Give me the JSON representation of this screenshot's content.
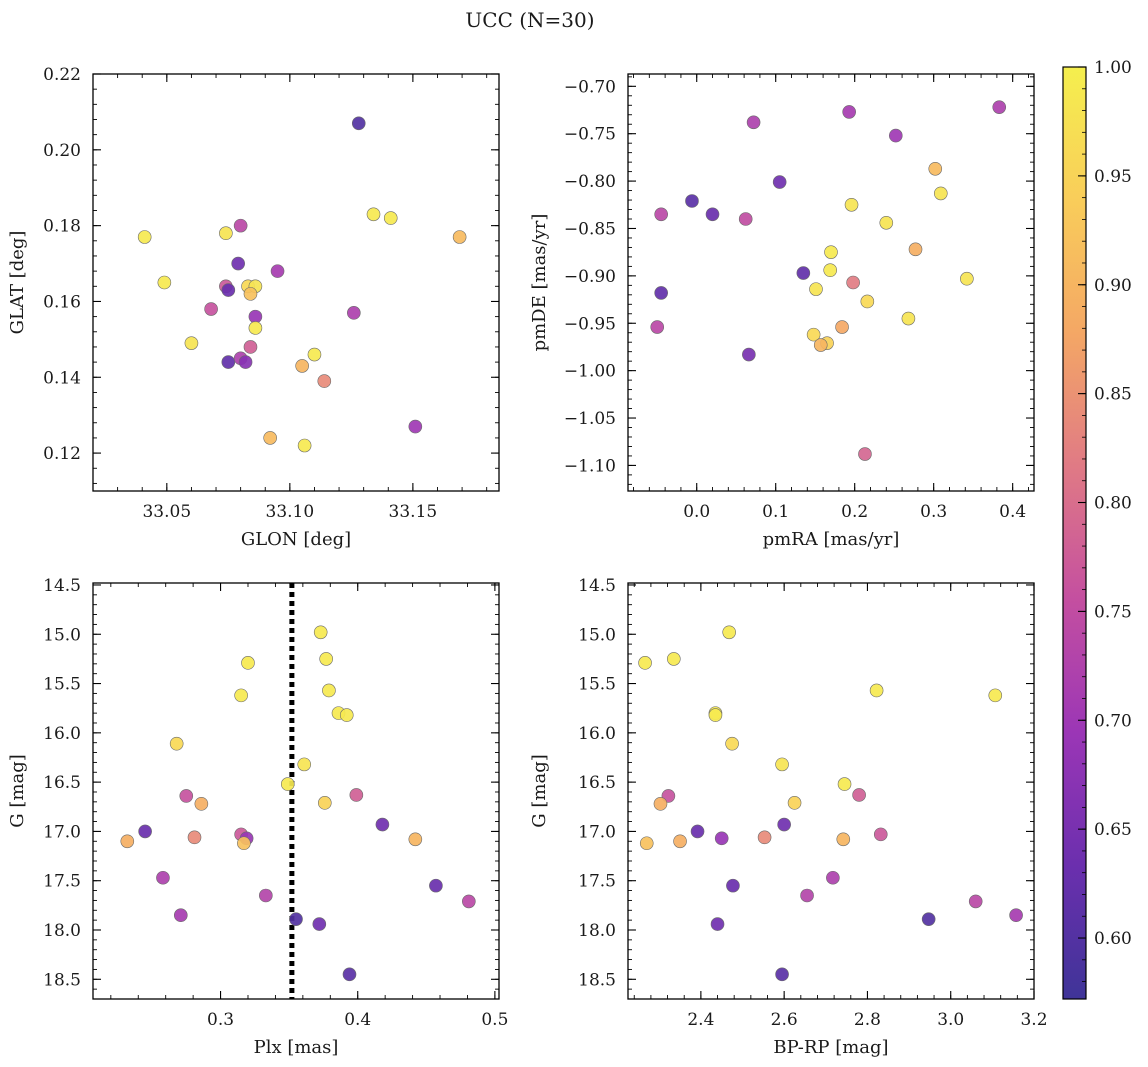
{
  "figure": {
    "suptitle": "UCC (N=30)"
  },
  "colorbar": {
    "ticks": [
      "0.60",
      "0.65",
      "0.70",
      "0.75",
      "0.80",
      "0.85",
      "0.90",
      "0.95",
      "1.00"
    ],
    "range": [
      0.572,
      1.0
    ],
    "colormap": "plasma-trimmed",
    "colors": [
      "#3f3498",
      "#6b2fae",
      "#9b36b6",
      "#c44fa0",
      "#e07a85",
      "#f4a765",
      "#f9cd5a",
      "#f5ef4e"
    ]
  },
  "chart_data": [
    {
      "id": "glon-glat",
      "type": "scatter",
      "xlabel": "GLON [deg]",
      "ylabel": "GLAT [deg]",
      "xlim": [
        33.02,
        33.185
      ],
      "ylim": [
        0.11,
        0.22
      ],
      "xticks": [
        "33.05",
        "33.10",
        "33.15"
      ],
      "yticks": [
        "0.12",
        "0.14",
        "0.16",
        "0.18",
        "0.20",
        "0.22"
      ],
      "points": [
        {
          "x": 33.128,
          "y": 0.207,
          "c": 0.6
        },
        {
          "x": 33.041,
          "y": 0.177,
          "c": 0.99
        },
        {
          "x": 33.049,
          "y": 0.165,
          "c": 0.99
        },
        {
          "x": 33.074,
          "y": 0.178,
          "c": 0.98
        },
        {
          "x": 33.08,
          "y": 0.18,
          "c": 0.74
        },
        {
          "x": 33.079,
          "y": 0.17,
          "c": 0.64
        },
        {
          "x": 33.095,
          "y": 0.168,
          "c": 0.71
        },
        {
          "x": 33.074,
          "y": 0.164,
          "c": 0.77
        },
        {
          "x": 33.075,
          "y": 0.163,
          "c": 0.63
        },
        {
          "x": 33.083,
          "y": 0.164,
          "c": 0.96
        },
        {
          "x": 33.086,
          "y": 0.164,
          "c": 0.98
        },
        {
          "x": 33.084,
          "y": 0.162,
          "c": 0.92
        },
        {
          "x": 33.068,
          "y": 0.158,
          "c": 0.76
        },
        {
          "x": 33.086,
          "y": 0.156,
          "c": 0.69
        },
        {
          "x": 33.086,
          "y": 0.153,
          "c": 0.99
        },
        {
          "x": 33.06,
          "y": 0.149,
          "c": 0.98
        },
        {
          "x": 33.084,
          "y": 0.148,
          "c": 0.78
        },
        {
          "x": 33.075,
          "y": 0.144,
          "c": 0.62
        },
        {
          "x": 33.08,
          "y": 0.145,
          "c": 0.72
        },
        {
          "x": 33.082,
          "y": 0.144,
          "c": 0.67
        },
        {
          "x": 33.134,
          "y": 0.183,
          "c": 0.99
        },
        {
          "x": 33.141,
          "y": 0.182,
          "c": 0.99
        },
        {
          "x": 33.169,
          "y": 0.177,
          "c": 0.91
        },
        {
          "x": 33.126,
          "y": 0.157,
          "c": 0.72
        },
        {
          "x": 33.11,
          "y": 0.146,
          "c": 0.99
        },
        {
          "x": 33.105,
          "y": 0.143,
          "c": 0.9
        },
        {
          "x": 33.114,
          "y": 0.139,
          "c": 0.84
        },
        {
          "x": 33.151,
          "y": 0.127,
          "c": 0.7
        },
        {
          "x": 33.092,
          "y": 0.124,
          "c": 0.91
        },
        {
          "x": 33.106,
          "y": 0.122,
          "c": 0.99
        }
      ]
    },
    {
      "id": "pmra-pmde",
      "type": "scatter",
      "xlabel": "pmRA [mas/yr]",
      "ylabel": "pmDE [mas/yr]",
      "xlim": [
        -0.087,
        0.427
      ],
      "ylim": [
        -1.127,
        -0.687
      ],
      "xticks": [
        "0.0",
        "0.1",
        "0.2",
        "0.3",
        "0.4"
      ],
      "yticks": [
        "−0.70",
        "−0.75",
        "−0.80",
        "−0.85",
        "−0.90",
        "−0.95",
        "−1.00",
        "−1.05",
        "−1.10"
      ],
      "points": [
        {
          "x": 0.383,
          "y": -0.722,
          "c": 0.72
        },
        {
          "x": 0.193,
          "y": -0.727,
          "c": 0.71
        },
        {
          "x": 0.072,
          "y": -0.738,
          "c": 0.72
        },
        {
          "x": 0.252,
          "y": -0.752,
          "c": 0.7
        },
        {
          "x": 0.302,
          "y": -0.787,
          "c": 0.91
        },
        {
          "x": 0.105,
          "y": -0.801,
          "c": 0.64
        },
        {
          "x": 0.309,
          "y": -0.813,
          "c": 0.98
        },
        {
          "x": -0.006,
          "y": -0.821,
          "c": 0.61
        },
        {
          "x": 0.196,
          "y": -0.825,
          "c": 0.98
        },
        {
          "x": 0.02,
          "y": -0.835,
          "c": 0.63
        },
        {
          "x": -0.045,
          "y": -0.835,
          "c": 0.74
        },
        {
          "x": 0.062,
          "y": -0.84,
          "c": 0.75
        },
        {
          "x": 0.24,
          "y": -0.844,
          "c": 0.98
        },
        {
          "x": 0.277,
          "y": -0.872,
          "c": 0.89
        },
        {
          "x": 0.17,
          "y": -0.875,
          "c": 0.99
        },
        {
          "x": 0.135,
          "y": -0.897,
          "c": 0.62
        },
        {
          "x": 0.169,
          "y": -0.894,
          "c": 0.99
        },
        {
          "x": 0.342,
          "y": -0.903,
          "c": 0.98
        },
        {
          "x": 0.198,
          "y": -0.907,
          "c": 0.82
        },
        {
          "x": 0.151,
          "y": -0.914,
          "c": 0.98
        },
        {
          "x": -0.045,
          "y": -0.918,
          "c": 0.62
        },
        {
          "x": 0.216,
          "y": -0.927,
          "c": 0.96
        },
        {
          "x": 0.268,
          "y": -0.945,
          "c": 0.98
        },
        {
          "x": -0.05,
          "y": -0.954,
          "c": 0.74
        },
        {
          "x": 0.184,
          "y": -0.954,
          "c": 0.88
        },
        {
          "x": 0.148,
          "y": -0.962,
          "c": 0.96
        },
        {
          "x": 0.165,
          "y": -0.971,
          "c": 0.95
        },
        {
          "x": 0.157,
          "y": -0.973,
          "c": 0.9
        },
        {
          "x": 0.066,
          "y": -0.983,
          "c": 0.65
        },
        {
          "x": 0.213,
          "y": -1.088,
          "c": 0.79
        }
      ]
    },
    {
      "id": "plx-g",
      "type": "scatter",
      "xlabel": "Plx [mas]",
      "ylabel": "G [mag]",
      "xlim": [
        0.207,
        0.503
      ],
      "ylim": [
        18.7,
        14.48
      ],
      "xticks": [
        "0.3",
        "0.4",
        "0.5"
      ],
      "yticks": [
        "14.5",
        "15.0",
        "15.5",
        "16.0",
        "16.5",
        "17.0",
        "17.5",
        "18.0",
        "18.5"
      ],
      "vline": 0.352,
      "points": [
        {
          "x": 0.373,
          "y": 14.98,
          "c": 0.99
        },
        {
          "x": 0.377,
          "y": 15.25,
          "c": 0.99
        },
        {
          "x": 0.32,
          "y": 15.29,
          "c": 0.99
        },
        {
          "x": 0.379,
          "y": 15.57,
          "c": 0.99
        },
        {
          "x": 0.315,
          "y": 15.62,
          "c": 0.99
        },
        {
          "x": 0.386,
          "y": 15.8,
          "c": 0.99
        },
        {
          "x": 0.392,
          "y": 15.82,
          "c": 0.99
        },
        {
          "x": 0.268,
          "y": 16.11,
          "c": 0.96
        },
        {
          "x": 0.361,
          "y": 16.32,
          "c": 0.98
        },
        {
          "x": 0.349,
          "y": 16.52,
          "c": 0.99
        },
        {
          "x": 0.275,
          "y": 16.64,
          "c": 0.76
        },
        {
          "x": 0.399,
          "y": 16.63,
          "c": 0.78
        },
        {
          "x": 0.376,
          "y": 16.71,
          "c": 0.95
        },
        {
          "x": 0.286,
          "y": 16.72,
          "c": 0.89
        },
        {
          "x": 0.418,
          "y": 16.93,
          "c": 0.64
        },
        {
          "x": 0.245,
          "y": 17.0,
          "c": 0.63
        },
        {
          "x": 0.315,
          "y": 17.03,
          "c": 0.77
        },
        {
          "x": 0.319,
          "y": 17.07,
          "c": 0.69
        },
        {
          "x": 0.281,
          "y": 17.06,
          "c": 0.84
        },
        {
          "x": 0.442,
          "y": 17.08,
          "c": 0.9
        },
        {
          "x": 0.232,
          "y": 17.1,
          "c": 0.89
        },
        {
          "x": 0.317,
          "y": 17.12,
          "c": 0.92
        },
        {
          "x": 0.258,
          "y": 17.47,
          "c": 0.72
        },
        {
          "x": 0.457,
          "y": 17.55,
          "c": 0.63
        },
        {
          "x": 0.333,
          "y": 17.65,
          "c": 0.73
        },
        {
          "x": 0.481,
          "y": 17.71,
          "c": 0.74
        },
        {
          "x": 0.271,
          "y": 17.85,
          "c": 0.71
        },
        {
          "x": 0.355,
          "y": 17.89,
          "c": 0.6
        },
        {
          "x": 0.372,
          "y": 17.94,
          "c": 0.64
        },
        {
          "x": 0.394,
          "y": 18.45,
          "c": 0.61
        }
      ]
    },
    {
      "id": "bprp-g",
      "type": "scatter",
      "xlabel": "BP-RP [mag]",
      "ylabel": "G [mag]",
      "xlim": [
        2.225,
        3.2
      ],
      "ylim": [
        18.7,
        14.48
      ],
      "xticks": [
        "2.4",
        "2.6",
        "2.8",
        "3.0",
        "3.2"
      ],
      "yticks": [
        "14.5",
        "15.0",
        "15.5",
        "16.0",
        "16.5",
        "17.0",
        "17.5",
        "18.0",
        "18.5"
      ],
      "points": [
        {
          "x": 2.468,
          "y": 14.98,
          "c": 0.99
        },
        {
          "x": 2.335,
          "y": 15.25,
          "c": 0.99
        },
        {
          "x": 2.266,
          "y": 15.29,
          "c": 0.99
        },
        {
          "x": 2.822,
          "y": 15.57,
          "c": 0.99
        },
        {
          "x": 3.107,
          "y": 15.62,
          "c": 0.99
        },
        {
          "x": 2.435,
          "y": 15.8,
          "c": 0.99
        },
        {
          "x": 2.435,
          "y": 15.82,
          "c": 0.99
        },
        {
          "x": 2.475,
          "y": 16.11,
          "c": 0.96
        },
        {
          "x": 2.595,
          "y": 16.32,
          "c": 0.98
        },
        {
          "x": 2.745,
          "y": 16.52,
          "c": 0.99
        },
        {
          "x": 2.322,
          "y": 16.64,
          "c": 0.76
        },
        {
          "x": 2.78,
          "y": 16.63,
          "c": 0.78
        },
        {
          "x": 2.625,
          "y": 16.71,
          "c": 0.95
        },
        {
          "x": 2.303,
          "y": 16.72,
          "c": 0.89
        },
        {
          "x": 2.6,
          "y": 16.93,
          "c": 0.64
        },
        {
          "x": 2.392,
          "y": 17.0,
          "c": 0.63
        },
        {
          "x": 2.832,
          "y": 17.03,
          "c": 0.77
        },
        {
          "x": 2.45,
          "y": 17.07,
          "c": 0.69
        },
        {
          "x": 2.553,
          "y": 17.06,
          "c": 0.84
        },
        {
          "x": 2.742,
          "y": 17.08,
          "c": 0.9
        },
        {
          "x": 2.35,
          "y": 17.1,
          "c": 0.89
        },
        {
          "x": 2.27,
          "y": 17.12,
          "c": 0.92
        },
        {
          "x": 2.717,
          "y": 17.47,
          "c": 0.72
        },
        {
          "x": 2.477,
          "y": 17.55,
          "c": 0.63
        },
        {
          "x": 2.655,
          "y": 17.65,
          "c": 0.73
        },
        {
          "x": 3.06,
          "y": 17.71,
          "c": 0.74
        },
        {
          "x": 3.157,
          "y": 17.85,
          "c": 0.71
        },
        {
          "x": 2.947,
          "y": 17.89,
          "c": 0.6
        },
        {
          "x": 2.44,
          "y": 17.94,
          "c": 0.64
        },
        {
          "x": 2.595,
          "y": 18.45,
          "c": 0.61
        }
      ]
    }
  ]
}
